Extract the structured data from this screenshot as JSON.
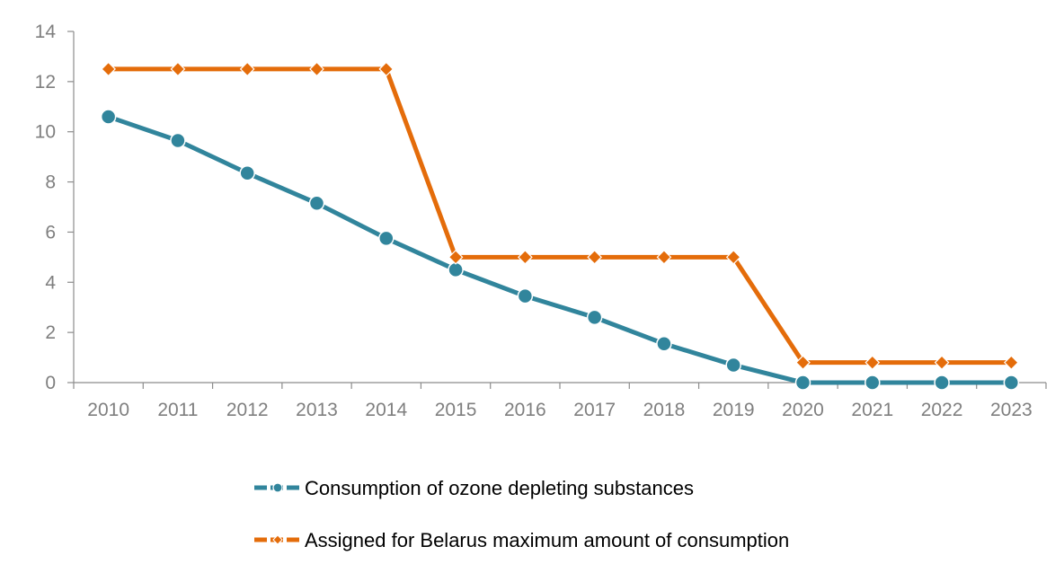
{
  "chart_data": {
    "type": "line",
    "x": [
      "2010",
      "2011",
      "2012",
      "2013",
      "2014",
      "2015",
      "2016",
      "2017",
      "2018",
      "2019",
      "2020",
      "2021",
      "2022",
      "2023"
    ],
    "ylim": [
      0,
      14
    ],
    "yticks": [
      0,
      2,
      4,
      6,
      8,
      10,
      12,
      14
    ],
    "grid": false,
    "legend_position": "bottom",
    "title": "",
    "xlabel": "",
    "ylabel": "",
    "series": [
      {
        "name": "Consumption of ozone depleting substances",
        "color": "#31859c",
        "marker": "circle",
        "values": [
          10.6,
          9.65,
          8.35,
          7.15,
          5.75,
          4.5,
          3.45,
          2.6,
          1.55,
          0.7,
          0,
          0,
          0,
          0
        ]
      },
      {
        "name": "Assigned for Belarus maximum amount of consumption",
        "color": "#e46c0a",
        "marker": "diamond",
        "values": [
          12.5,
          12.5,
          12.5,
          12.5,
          12.5,
          5.0,
          5.0,
          5.0,
          5.0,
          5.0,
          0.8,
          0.8,
          0.8,
          0.8
        ]
      }
    ]
  }
}
